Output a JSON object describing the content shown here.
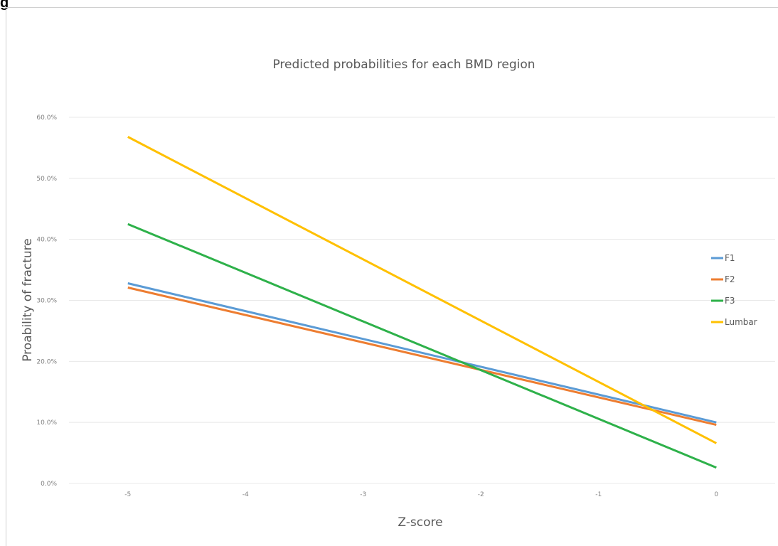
{
  "header": {
    "label": "g"
  },
  "chart_data": {
    "type": "line",
    "title": "Predicted probabilities for each BMD region",
    "xlabel": "Z-score",
    "ylabel": "Proability of fracture",
    "x": [
      -5,
      0
    ],
    "x_ticks": [
      -5,
      -4,
      -3,
      -2,
      -1,
      0
    ],
    "x_tick_labels": [
      "-5",
      "-4",
      "-3",
      "-2",
      "-1",
      "0"
    ],
    "y_ticks": [
      0,
      10,
      20,
      30,
      40,
      50,
      60
    ],
    "y_tick_labels": [
      "0.0%",
      "10.0%",
      "20.0%",
      "30.0%",
      "40.0%",
      "50.0%",
      "60.0%"
    ],
    "xlim": [
      -5.5,
      0.5
    ],
    "ylim": [
      0,
      60
    ],
    "grid": true,
    "legend_position": "right",
    "series": [
      {
        "name": "F1",
        "values": [
          32.8,
          10.0
        ],
        "color": "#5b9bd5"
      },
      {
        "name": "F2",
        "values": [
          32.1,
          9.6
        ],
        "color": "#ed7d31"
      },
      {
        "name": "F3",
        "values": [
          42.5,
          2.6
        ],
        "color": "#2eb14a"
      },
      {
        "name": "Lumbar",
        "values": [
          56.8,
          6.6
        ],
        "color": "#ffc000"
      }
    ]
  }
}
